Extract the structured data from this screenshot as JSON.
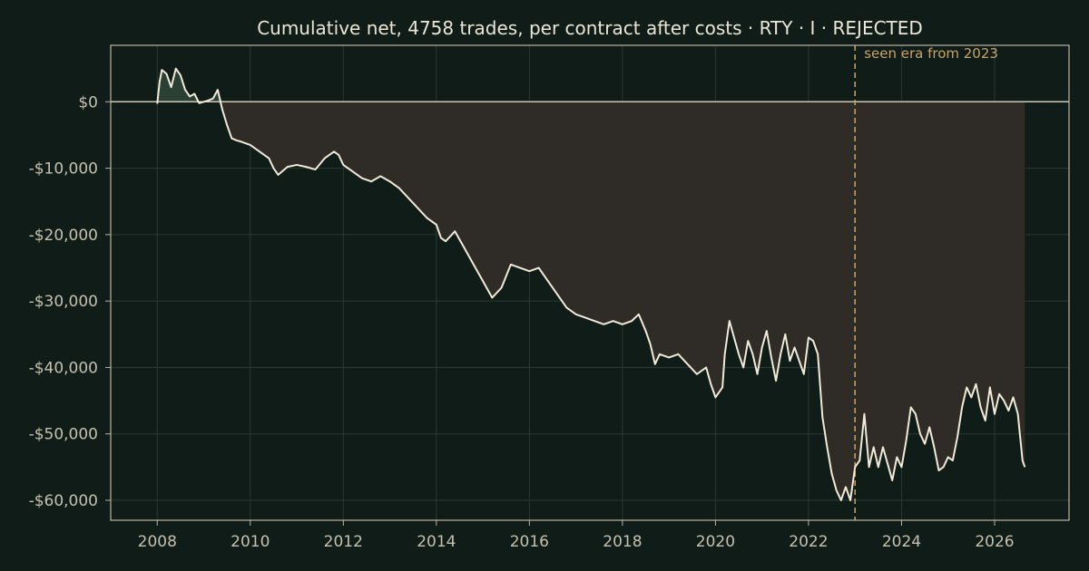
{
  "chart_data": {
    "type": "area",
    "title": "Cumulative net, 4758 trades, per contract after costs  ·  RTY · I · REJECTED",
    "xlabel": "",
    "ylabel": "",
    "xlim": [
      2007.0,
      2027.6
    ],
    "ylim": [
      -63000,
      8500
    ],
    "grid": true,
    "legend": "none",
    "x_ticks": [
      2008,
      2010,
      2012,
      2014,
      2016,
      2018,
      2020,
      2022,
      2024,
      2026
    ],
    "y_ticks": [
      0,
      -10000,
      -20000,
      -30000,
      -40000,
      -50000,
      -60000
    ],
    "y_tick_labels": [
      "$0",
      "-$10,000",
      "-$20,000",
      "-$30,000",
      "-$40,000",
      "-$50,000",
      "-$60,000"
    ],
    "zero_line": 0,
    "annotation": {
      "x": 2023.0,
      "label": "seen era from 2023",
      "style": "dashed"
    },
    "series": [
      {
        "x": [
          2008.0,
          2008.05,
          2008.1,
          2008.2,
          2008.3,
          2008.4,
          2008.5,
          2008.6,
          2008.7,
          2008.8,
          2008.9,
          2009.0,
          2009.1,
          2009.2,
          2009.3,
          2009.4,
          2009.5,
          2009.6,
          2009.7,
          2009.8,
          2010.0,
          2010.2,
          2010.4,
          2010.5,
          2010.6,
          2010.8,
          2011.0,
          2011.2,
          2011.4,
          2011.6,
          2011.8,
          2011.9,
          2012.0,
          2012.2,
          2012.4,
          2012.6,
          2012.8,
          2013.0,
          2013.2,
          2013.4,
          2013.6,
          2013.8,
          2014.0,
          2014.1,
          2014.2,
          2014.4,
          2014.6,
          2014.8,
          2015.0,
          2015.2,
          2015.4,
          2015.6,
          2015.8,
          2016.0,
          2016.2,
          2016.4,
          2016.6,
          2016.8,
          2017.0,
          2017.2,
          2017.4,
          2017.6,
          2017.8,
          2018.0,
          2018.2,
          2018.35,
          2018.5,
          2018.6,
          2018.7,
          2018.8,
          2019.0,
          2019.2,
          2019.4,
          2019.6,
          2019.8,
          2019.9,
          2020.0,
          2020.15,
          2020.2,
          2020.3,
          2020.4,
          2020.5,
          2020.6,
          2020.7,
          2020.8,
          2020.9,
          2021.0,
          2021.1,
          2021.2,
          2021.3,
          2021.4,
          2021.5,
          2021.6,
          2021.7,
          2021.8,
          2021.9,
          2022.0,
          2022.1,
          2022.2,
          2022.3,
          2022.4,
          2022.5,
          2022.6,
          2022.7,
          2022.8,
          2022.9,
          2023.0,
          2023.1,
          2023.2,
          2023.3,
          2023.4,
          2023.5,
          2023.6,
          2023.7,
          2023.8,
          2023.9,
          2024.0,
          2024.1,
          2024.2,
          2024.3,
          2024.4,
          2024.5,
          2024.6,
          2024.7,
          2024.8,
          2024.9,
          2025.0,
          2025.1,
          2025.2,
          2025.3,
          2025.4,
          2025.5,
          2025.6,
          2025.7,
          2025.8,
          2025.9,
          2026.0,
          2026.1,
          2026.2,
          2026.3,
          2026.4,
          2026.5,
          2026.6,
          2026.65
        ],
        "values": [
          -300,
          3000,
          4800,
          4200,
          2200,
          5000,
          4000,
          1800,
          800,
          1200,
          -200,
          0,
          200,
          500,
          1800,
          -1200,
          -3500,
          -5500,
          -5800,
          -6000,
          -6500,
          -7500,
          -8500,
          -10000,
          -11000,
          -9800,
          -9500,
          -9800,
          -10200,
          -8500,
          -7500,
          -8000,
          -9500,
          -10500,
          -11500,
          -12000,
          -11200,
          -12000,
          -13000,
          -14500,
          -16000,
          -17500,
          -18500,
          -20500,
          -21000,
          -19500,
          -22000,
          -24500,
          -27000,
          -29500,
          -28000,
          -24500,
          -25000,
          -25500,
          -25000,
          -27000,
          -29000,
          -31000,
          -32000,
          -32500,
          -33000,
          -33500,
          -33000,
          -33500,
          -33000,
          -32000,
          -34500,
          -36500,
          -39500,
          -38000,
          -38500,
          -38000,
          -39500,
          -41000,
          -40000,
          -42500,
          -44500,
          -43000,
          -38000,
          -33000,
          -35500,
          -38000,
          -40000,
          -36000,
          -38000,
          -41000,
          -37000,
          -34500,
          -38500,
          -42000,
          -38000,
          -35000,
          -39000,
          -37000,
          -39000,
          -41000,
          -35500,
          -36000,
          -38000,
          -47500,
          -52000,
          -56000,
          -58500,
          -60000,
          -58000,
          -60000,
          -55000,
          -54000,
          -47000,
          -55000,
          -52000,
          -55000,
          -52000,
          -54500,
          -57000,
          -53500,
          -55000,
          -51000,
          -46000,
          -47000,
          -50000,
          -51500,
          -49000,
          -52000,
          -55500,
          -55000,
          -53500,
          -54000,
          -50500,
          -46000,
          -43000,
          -44500,
          -42500,
          -46000,
          -48000,
          -43000,
          -47000,
          -44000,
          -45000,
          -46500,
          -44500,
          -47000,
          -54000,
          -55000
        ]
      }
    ]
  }
}
